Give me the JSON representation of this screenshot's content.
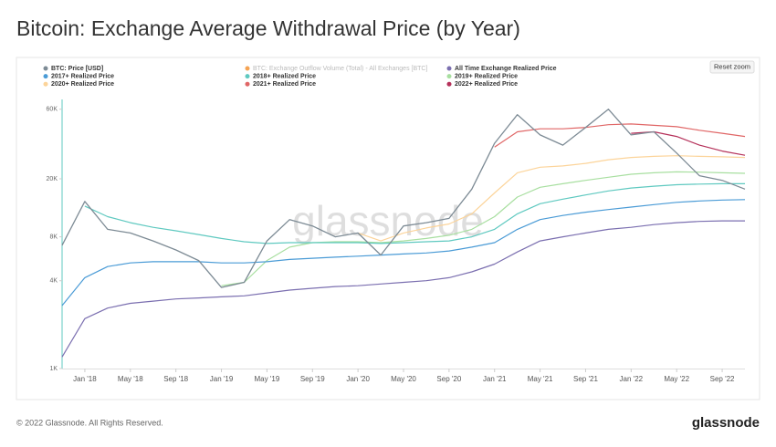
{
  "chart_data": {
    "type": "line",
    "title": "Bitcoin: Exchange Average Withdrawal Price (by Year)",
    "watermark": "glassnode",
    "reset_button": "Reset zoom",
    "log_y": true,
    "grid": false,
    "legend": "top",
    "x": [
      "2017-11",
      "2018-01",
      "2018-03",
      "2018-05",
      "2018-07",
      "2018-09",
      "2018-11",
      "2019-01",
      "2019-03",
      "2019-05",
      "2019-07",
      "2019-09",
      "2019-11",
      "2020-01",
      "2020-03",
      "2020-05",
      "2020-07",
      "2020-09",
      "2020-11",
      "2021-01",
      "2021-03",
      "2021-05",
      "2021-07",
      "2021-09",
      "2021-11",
      "2022-01",
      "2022-03",
      "2022-05",
      "2022-07",
      "2022-09",
      "2022-11"
    ],
    "xlim": [
      "2017-11",
      "2022-11"
    ],
    "xticks": [
      {
        "value": "2018-01",
        "label": "Jan '18"
      },
      {
        "value": "2018-05",
        "label": "May '18"
      },
      {
        "value": "2018-09",
        "label": "Sep '18"
      },
      {
        "value": "2019-01",
        "label": "Jan '19"
      },
      {
        "value": "2019-05",
        "label": "May '19"
      },
      {
        "value": "2019-09",
        "label": "Sep '19"
      },
      {
        "value": "2020-01",
        "label": "Jan '20"
      },
      {
        "value": "2020-05",
        "label": "May '20"
      },
      {
        "value": "2020-09",
        "label": "Sep '20"
      },
      {
        "value": "2021-01",
        "label": "Jan '21"
      },
      {
        "value": "2021-05",
        "label": "May '21"
      },
      {
        "value": "2021-09",
        "label": "Sep '21"
      },
      {
        "value": "2022-01",
        "label": "Jan '22"
      },
      {
        "value": "2022-05",
        "label": "May '22"
      },
      {
        "value": "2022-09",
        "label": "Sep '22"
      }
    ],
    "ylim": [
      1000,
      70000
    ],
    "yticks": [
      {
        "value": 1000,
        "label": "1K"
      },
      {
        "value": 4000,
        "label": "4K"
      },
      {
        "value": 8000,
        "label": "8K"
      },
      {
        "value": 20000,
        "label": "20K"
      },
      {
        "value": 60000,
        "label": "60K"
      }
    ],
    "series": [
      {
        "name": "BTC: Price [USD]",
        "color": "#7d8b95",
        "values": [
          7000,
          14000,
          9000,
          8500,
          7500,
          6500,
          5500,
          3600,
          3900,
          7500,
          10500,
          9500,
          8000,
          8500,
          6000,
          9500,
          10000,
          10700,
          17000,
          35000,
          55000,
          40000,
          34000,
          45000,
          60000,
          40000,
          42000,
          30000,
          21000,
          19500,
          17000
        ]
      },
      {
        "name": "BTC: Exchange Outflow Volume (Total) - All Exchanges [BTC]",
        "color": "#f28c28",
        "visible": false
      },
      {
        "name": "All Time Exchange Realized Price",
        "color": "#7b6fb0",
        "values": [
          1200,
          2200,
          2600,
          2800,
          2900,
          3000,
          3050,
          3100,
          3150,
          3300,
          3450,
          3550,
          3650,
          3700,
          3800,
          3900,
          4000,
          4200,
          4600,
          5200,
          6300,
          7500,
          8000,
          8500,
          9000,
          9300,
          9700,
          10000,
          10200,
          10300,
          10300
        ]
      },
      {
        "name": "2017+ Realized Price",
        "color": "#4a9bd6",
        "values": [
          2700,
          4200,
          5000,
          5300,
          5400,
          5400,
          5400,
          5300,
          5300,
          5400,
          5600,
          5700,
          5800,
          5900,
          6000,
          6100,
          6200,
          6400,
          6800,
          7300,
          9000,
          10500,
          11200,
          11800,
          12300,
          12800,
          13300,
          13800,
          14100,
          14300,
          14400
        ]
      },
      {
        "name": "2018+ Realized Price",
        "color": "#5fc9c0",
        "values": [
          null,
          13000,
          11000,
          10000,
          9300,
          8800,
          8300,
          7800,
          7400,
          7200,
          7300,
          7300,
          7300,
          7300,
          7200,
          7300,
          7400,
          7500,
          8000,
          9000,
          11500,
          13500,
          14500,
          15500,
          16500,
          17300,
          17800,
          18200,
          18400,
          18500,
          18500
        ]
      },
      {
        "name": "2019+ Realized Price",
        "color": "#a8dfa0",
        "values": [
          null,
          null,
          null,
          null,
          null,
          null,
          null,
          3700,
          3900,
          5500,
          6800,
          7300,
          7400,
          7400,
          7300,
          7500,
          7800,
          8200,
          9000,
          11000,
          15000,
          17500,
          18500,
          19500,
          20500,
          21500,
          22000,
          22300,
          22200,
          22000,
          21800
        ]
      },
      {
        "name": "2020+ Realized Price",
        "color": "#fcd49a",
        "values": [
          null,
          null,
          null,
          null,
          null,
          null,
          null,
          null,
          null,
          null,
          null,
          null,
          null,
          8500,
          7500,
          8500,
          9200,
          9800,
          11500,
          16000,
          22000,
          24000,
          24500,
          25500,
          27000,
          28000,
          28500,
          28800,
          28500,
          28300,
          28000
        ]
      },
      {
        "name": "2021+ Realized Price",
        "color": "#e06666",
        "values": [
          null,
          null,
          null,
          null,
          null,
          null,
          null,
          null,
          null,
          null,
          null,
          null,
          null,
          null,
          null,
          null,
          null,
          null,
          null,
          33000,
          42000,
          44000,
          44000,
          45000,
          47000,
          47500,
          46500,
          45500,
          43000,
          41000,
          39000
        ]
      },
      {
        "name": "2022+ Realized Price",
        "color": "#b5315a",
        "values": [
          null,
          null,
          null,
          null,
          null,
          null,
          null,
          null,
          null,
          null,
          null,
          null,
          null,
          null,
          null,
          null,
          null,
          null,
          null,
          null,
          null,
          null,
          null,
          null,
          null,
          41000,
          42000,
          39000,
          34000,
          31000,
          29000
        ]
      }
    ]
  },
  "footer": "© 2022 Glassnode. All Rights Reserved.",
  "logo": "glassnode"
}
